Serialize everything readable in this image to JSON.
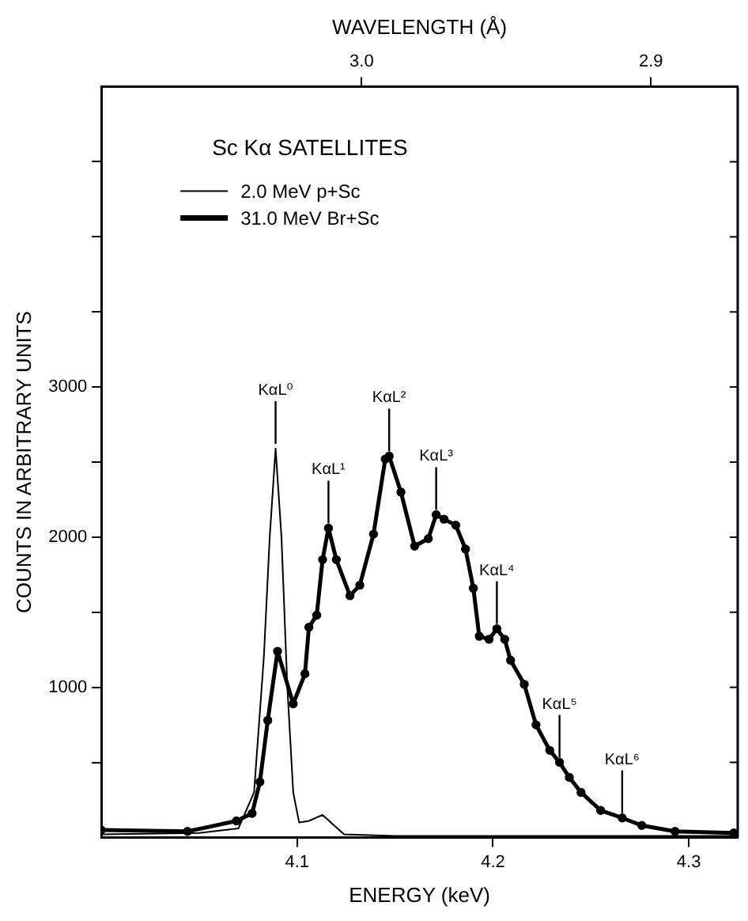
{
  "chart_data": {
    "type": "line",
    "title": "Sc Kα SATELLITES",
    "xlabel": "ENERGY (keV)",
    "ylabel": "COUNTS IN ARBITRARY UNITS",
    "x2label": "WAVELENGTH (Å)",
    "xlim": [
      4.0,
      4.325
    ],
    "xticks": [
      4.1,
      4.2,
      4.3
    ],
    "x2lim": [
      3.09,
      2.87
    ],
    "x2ticks": [
      {
        "value": 3.0,
        "label": "3.0"
      },
      {
        "value": 2.9,
        "label": "2.9"
      }
    ],
    "ylim": [
      0,
      5000
    ],
    "yticks": [
      {
        "value": 500,
        "label": null
      },
      1000,
      {
        "value": 1500,
        "label": null
      },
      2000,
      {
        "value": 2500,
        "label": null
      },
      3000,
      {
        "value": 3500,
        "label": null
      },
      {
        "value": 4000,
        "label": null
      },
      {
        "value": 4500,
        "label": null
      }
    ],
    "grid": false,
    "legend": "top left",
    "series": [
      {
        "name": "2.0 MeV p+Sc",
        "color": "#000000",
        "marker": "none",
        "line_style": "solid",
        "x": [
          4.0,
          4.05,
          4.07,
          4.078,
          4.083,
          4.086,
          4.089,
          4.092,
          4.095,
          4.098,
          4.101,
          4.106,
          4.113,
          4.118,
          4.124,
          4.15,
          4.325
        ],
        "values": [
          20,
          30,
          60,
          300,
          1200,
          2000,
          2590,
          2000,
          1000,
          300,
          100,
          110,
          150,
          90,
          20,
          10,
          10
        ]
      },
      {
        "name": "31.0 MeV Br+Sc",
        "color": "#000000",
        "marker": "circle",
        "line_style": "solid",
        "x": [
          4.0,
          4.044,
          4.069,
          4.077,
          4.081,
          4.085,
          4.09,
          4.098,
          4.104,
          4.106,
          4.11,
          4.113,
          4.116,
          4.12,
          4.127,
          4.132,
          4.139,
          4.145,
          4.147,
          4.153,
          4.16,
          4.167,
          4.171,
          4.175,
          4.181,
          4.186,
          4.19,
          4.193,
          4.198,
          4.202,
          4.206,
          4.209,
          4.216,
          4.222,
          4.229,
          4.234,
          4.239,
          4.245,
          4.255,
          4.266,
          4.276,
          4.293,
          4.323
        ],
        "values": [
          50,
          40,
          110,
          160,
          370,
          780,
          1240,
          890,
          1090,
          1400,
          1480,
          1850,
          2060,
          1850,
          1610,
          1680,
          2020,
          2520,
          2540,
          2300,
          1940,
          1990,
          2150,
          2120,
          2080,
          1920,
          1660,
          1340,
          1320,
          1390,
          1320,
          1180,
          1020,
          750,
          580,
          500,
          400,
          300,
          180,
          130,
          80,
          40,
          30
        ]
      }
    ],
    "annotations": [
      {
        "text": "KαL⁰",
        "x": 4.089,
        "y": 2590
      },
      {
        "text": "KαL¹",
        "x": 4.116,
        "y": 2060
      },
      {
        "text": "KαL²",
        "x": 4.147,
        "y": 2540
      },
      {
        "text": "KαL³",
        "x": 4.171,
        "y": 2150
      },
      {
        "text": "KαL⁴",
        "x": 4.202,
        "y": 1390
      },
      {
        "text": "KαL⁵",
        "x": 4.234,
        "y": 500
      },
      {
        "text": "KαL⁶",
        "x": 4.266,
        "y": 130
      }
    ]
  }
}
